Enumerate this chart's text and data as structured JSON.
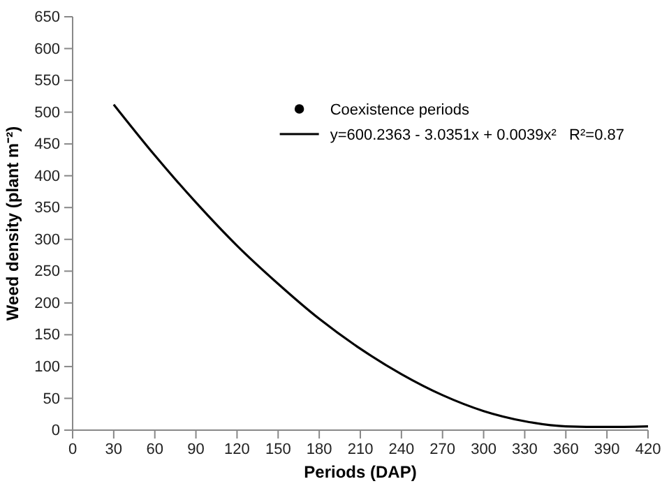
{
  "chart_data": {
    "type": "line",
    "xlabel": "Periods (DAP)",
    "ylabel": "Weed density (plant m⁻²)",
    "x": [
      30,
      60,
      90,
      120,
      150,
      180,
      210,
      240,
      270,
      300,
      330,
      360,
      390,
      420
    ],
    "series": [
      {
        "name": "Coexistence periods",
        "type": "scatter",
        "color": "#000000",
        "marker": "circle",
        "values": [
          null,
          null,
          null,
          null,
          null,
          null,
          null,
          null,
          null,
          null,
          null,
          null,
          null,
          null
        ]
      },
      {
        "name": "y=600.2363 - 3.0351x + 0.0039x²   R²=0.87",
        "color": "#000000",
        "values": [
          512,
          432,
          358,
          290,
          230,
          175,
          128,
          88,
          55,
          30,
          14,
          6,
          5,
          6
        ]
      }
    ],
    "xlim": [
      0,
      420
    ],
    "xticks": [
      0,
      30,
      60,
      90,
      120,
      150,
      180,
      210,
      240,
      270,
      300,
      330,
      360,
      390,
      420
    ],
    "ylim": [
      0,
      650
    ],
    "yticks": [
      0,
      50,
      100,
      150,
      200,
      250,
      300,
      350,
      400,
      450,
      500,
      550,
      600,
      650
    ],
    "grid": false,
    "legend": "top right"
  }
}
